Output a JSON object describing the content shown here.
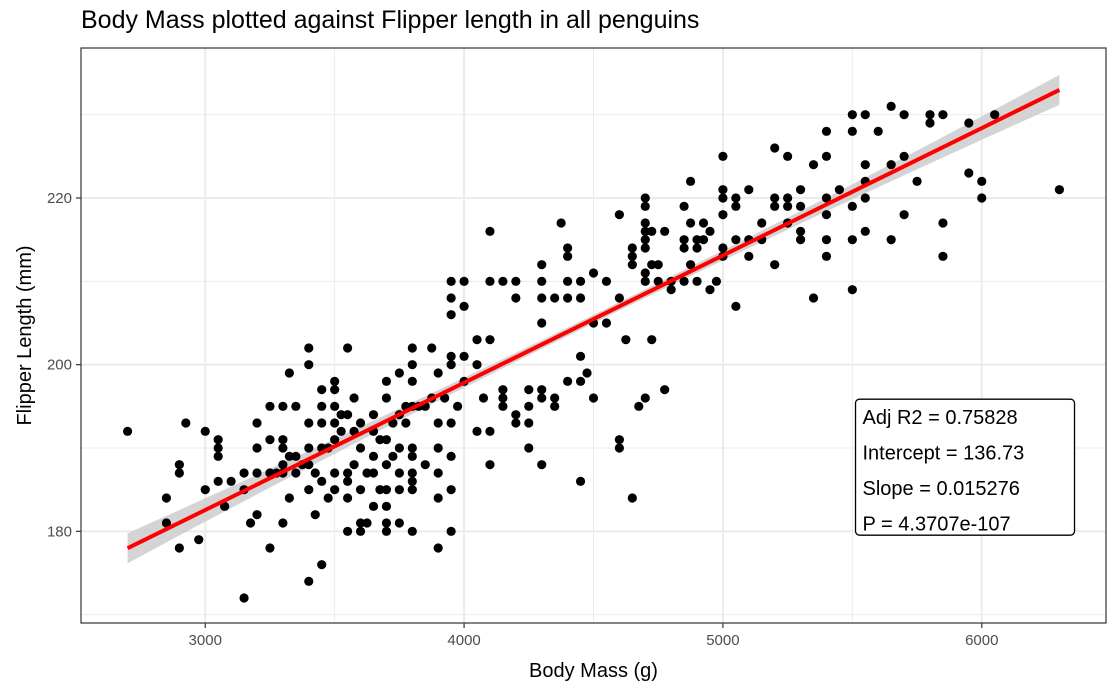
{
  "chart_data": {
    "type": "scatter",
    "title": "Body Mass plotted against Flipper length in all penguins",
    "xlabel": "Body Mass (g)",
    "ylabel": "Flipper Length (mm)",
    "xlim": [
      2520,
      6480
    ],
    "ylim": [
      169,
      238
    ],
    "x_ticks": [
      3000,
      4000,
      5000,
      6000
    ],
    "y_ticks": [
      180,
      200,
      220
    ],
    "grid": true,
    "colors": {
      "points": "#000000",
      "fit_line": "#ff0000",
      "confidence_band": "#cccccc",
      "grid": "#ebebeb"
    },
    "regression": {
      "intercept": 136.73,
      "slope": 0.015276,
      "x_range": [
        2700,
        6300
      ],
      "band_halfwidth_ends": 1.8,
      "band_halfwidth_center": 0.5
    },
    "stats_box": {
      "lines": [
        "Adj R2 =  0.75828",
        "Intercept = 136.73",
        "Slope = 0.015276",
        "P = 4.3707e-107"
      ],
      "x": 5520,
      "y": 195.5
    },
    "points": [
      [
        2700,
        192
      ],
      [
        2850,
        181
      ],
      [
        2850,
        184
      ],
      [
        2900,
        178
      ],
      [
        2900,
        187
      ],
      [
        2900,
        188
      ],
      [
        2925,
        193
      ],
      [
        2975,
        179
      ],
      [
        3000,
        185
      ],
      [
        3000,
        192
      ],
      [
        3050,
        186
      ],
      [
        3050,
        189
      ],
      [
        3050,
        190
      ],
      [
        3050,
        191
      ],
      [
        3075,
        183
      ],
      [
        3100,
        186
      ],
      [
        3150,
        172
      ],
      [
        3150,
        185
      ],
      [
        3150,
        187
      ],
      [
        3175,
        181
      ],
      [
        3200,
        182
      ],
      [
        3200,
        187
      ],
      [
        3200,
        190
      ],
      [
        3200,
        193
      ],
      [
        3250,
        178
      ],
      [
        3250,
        187
      ],
      [
        3250,
        191
      ],
      [
        3250,
        195
      ],
      [
        3275,
        187
      ],
      [
        3300,
        181
      ],
      [
        3300,
        187
      ],
      [
        3300,
        188
      ],
      [
        3300,
        190
      ],
      [
        3300,
        191
      ],
      [
        3300,
        195
      ],
      [
        3325,
        184
      ],
      [
        3325,
        189
      ],
      [
        3325,
        199
      ],
      [
        3350,
        187
      ],
      [
        3350,
        189
      ],
      [
        3350,
        195
      ],
      [
        3375,
        188
      ],
      [
        3400,
        174
      ],
      [
        3400,
        185
      ],
      [
        3400,
        188
      ],
      [
        3400,
        190
      ],
      [
        3400,
        193
      ],
      [
        3400,
        200
      ],
      [
        3400,
        202
      ],
      [
        3425,
        182
      ],
      [
        3425,
        187
      ],
      [
        3450,
        176
      ],
      [
        3450,
        186
      ],
      [
        3450,
        190
      ],
      [
        3450,
        193
      ],
      [
        3450,
        195
      ],
      [
        3450,
        197
      ],
      [
        3475,
        184
      ],
      [
        3475,
        190
      ],
      [
        3500,
        185
      ],
      [
        3500,
        187
      ],
      [
        3500,
        191
      ],
      [
        3500,
        193
      ],
      [
        3500,
        195
      ],
      [
        3500,
        197
      ],
      [
        3500,
        198
      ],
      [
        3525,
        192
      ],
      [
        3525,
        194
      ],
      [
        3550,
        180
      ],
      [
        3550,
        184
      ],
      [
        3550,
        186
      ],
      [
        3550,
        187
      ],
      [
        3550,
        194
      ],
      [
        3550,
        202
      ],
      [
        3575,
        188
      ],
      [
        3575,
        192
      ],
      [
        3575,
        196
      ],
      [
        3600,
        180
      ],
      [
        3600,
        181
      ],
      [
        3600,
        185
      ],
      [
        3600,
        190
      ],
      [
        3600,
        193
      ],
      [
        3625,
        181
      ],
      [
        3625,
        187
      ],
      [
        3650,
        183
      ],
      [
        3650,
        187
      ],
      [
        3650,
        189
      ],
      [
        3650,
        192
      ],
      [
        3650,
        194
      ],
      [
        3675,
        185
      ],
      [
        3675,
        191
      ],
      [
        3700,
        180
      ],
      [
        3700,
        181
      ],
      [
        3700,
        183
      ],
      [
        3700,
        185
      ],
      [
        3700,
        188
      ],
      [
        3700,
        191
      ],
      [
        3700,
        196
      ],
      [
        3700,
        198
      ],
      [
        3725,
        189
      ],
      [
        3725,
        193
      ],
      [
        3750,
        181
      ],
      [
        3750,
        185
      ],
      [
        3750,
        187
      ],
      [
        3750,
        190
      ],
      [
        3750,
        194
      ],
      [
        3750,
        199
      ],
      [
        3775,
        193
      ],
      [
        3775,
        195
      ],
      [
        3800,
        180
      ],
      [
        3800,
        185
      ],
      [
        3800,
        186
      ],
      [
        3800,
        187
      ],
      [
        3800,
        189
      ],
      [
        3800,
        190
      ],
      [
        3800,
        195
      ],
      [
        3800,
        198
      ],
      [
        3800,
        200
      ],
      [
        3800,
        202
      ],
      [
        3825,
        195
      ],
      [
        3850,
        188
      ],
      [
        3850,
        195
      ],
      [
        3875,
        196
      ],
      [
        3875,
        202
      ],
      [
        3900,
        178
      ],
      [
        3900,
        184
      ],
      [
        3900,
        187
      ],
      [
        3900,
        190
      ],
      [
        3900,
        193
      ],
      [
        3900,
        199
      ],
      [
        3925,
        196
      ],
      [
        3950,
        180
      ],
      [
        3950,
        185
      ],
      [
        3950,
        189
      ],
      [
        3950,
        193
      ],
      [
        3950,
        200
      ],
      [
        3950,
        201
      ],
      [
        3950,
        206
      ],
      [
        3950,
        208
      ],
      [
        3950,
        210
      ],
      [
        3975,
        195
      ],
      [
        4000,
        198
      ],
      [
        4000,
        201
      ],
      [
        4000,
        207
      ],
      [
        4000,
        210
      ],
      [
        4050,
        192
      ],
      [
        4050,
        200
      ],
      [
        4050,
        203
      ],
      [
        4075,
        196
      ],
      [
        4100,
        188
      ],
      [
        4100,
        192
      ],
      [
        4100,
        203
      ],
      [
        4100,
        210
      ],
      [
        4100,
        216
      ],
      [
        4150,
        195
      ],
      [
        4150,
        196
      ],
      [
        4150,
        197
      ],
      [
        4150,
        210
      ],
      [
        4200,
        193
      ],
      [
        4200,
        194
      ],
      [
        4200,
        208
      ],
      [
        4200,
        210
      ],
      [
        4250,
        190
      ],
      [
        4250,
        193
      ],
      [
        4250,
        195
      ],
      [
        4250,
        197
      ],
      [
        4300,
        188
      ],
      [
        4300,
        196
      ],
      [
        4300,
        197
      ],
      [
        4300,
        205
      ],
      [
        4300,
        208
      ],
      [
        4300,
        210
      ],
      [
        4300,
        212
      ],
      [
        4350,
        195
      ],
      [
        4350,
        196
      ],
      [
        4350,
        208
      ],
      [
        4375,
        217
      ],
      [
        4400,
        198
      ],
      [
        4400,
        208
      ],
      [
        4400,
        210
      ],
      [
        4400,
        213
      ],
      [
        4400,
        214
      ],
      [
        4450,
        186
      ],
      [
        4450,
        198
      ],
      [
        4450,
        201
      ],
      [
        4450,
        208
      ],
      [
        4450,
        210
      ],
      [
        4475,
        199
      ],
      [
        4500,
        196
      ],
      [
        4500,
        205
      ],
      [
        4500,
        211
      ],
      [
        4550,
        205
      ],
      [
        4550,
        210
      ],
      [
        4600,
        190
      ],
      [
        4600,
        191
      ],
      [
        4600,
        208
      ],
      [
        4600,
        218
      ],
      [
        4625,
        203
      ],
      [
        4650,
        184
      ],
      [
        4650,
        212
      ],
      [
        4650,
        213
      ],
      [
        4650,
        214
      ],
      [
        4675,
        195
      ],
      [
        4700,
        196
      ],
      [
        4700,
        210
      ],
      [
        4700,
        211
      ],
      [
        4700,
        214
      ],
      [
        4700,
        215
      ],
      [
        4700,
        216
      ],
      [
        4700,
        217
      ],
      [
        4700,
        219
      ],
      [
        4700,
        220
      ],
      [
        4725,
        203
      ],
      [
        4725,
        212
      ],
      [
        4725,
        216
      ],
      [
        4750,
        210
      ],
      [
        4750,
        212
      ],
      [
        4775,
        197
      ],
      [
        4775,
        216
      ],
      [
        4800,
        209
      ],
      [
        4800,
        210
      ],
      [
        4850,
        210
      ],
      [
        4850,
        214
      ],
      [
        4850,
        215
      ],
      [
        4850,
        219
      ],
      [
        4875,
        212
      ],
      [
        4875,
        217
      ],
      [
        4875,
        222
      ],
      [
        4900,
        210
      ],
      [
        4900,
        214
      ],
      [
        4900,
        215
      ],
      [
        4925,
        215
      ],
      [
        4925,
        217
      ],
      [
        4950,
        209
      ],
      [
        4950,
        216
      ],
      [
        4975,
        210
      ],
      [
        5000,
        213
      ],
      [
        5000,
        214
      ],
      [
        5000,
        218
      ],
      [
        5000,
        220
      ],
      [
        5000,
        221
      ],
      [
        5000,
        225
      ],
      [
        5050,
        207
      ],
      [
        5050,
        215
      ],
      [
        5050,
        219
      ],
      [
        5050,
        220
      ],
      [
        5100,
        213
      ],
      [
        5100,
        215
      ],
      [
        5100,
        221
      ],
      [
        5150,
        215
      ],
      [
        5150,
        217
      ],
      [
        5200,
        212
      ],
      [
        5200,
        219
      ],
      [
        5200,
        220
      ],
      [
        5200,
        226
      ],
      [
        5250,
        217
      ],
      [
        5250,
        219
      ],
      [
        5250,
        220
      ],
      [
        5250,
        225
      ],
      [
        5300,
        215
      ],
      [
        5300,
        216
      ],
      [
        5300,
        219
      ],
      [
        5300,
        221
      ],
      [
        5350,
        208
      ],
      [
        5350,
        224
      ],
      [
        5400,
        213
      ],
      [
        5400,
        215
      ],
      [
        5400,
        218
      ],
      [
        5400,
        220
      ],
      [
        5400,
        225
      ],
      [
        5400,
        228
      ],
      [
        5450,
        221
      ],
      [
        5500,
        209
      ],
      [
        5500,
        215
      ],
      [
        5500,
        219
      ],
      [
        5500,
        228
      ],
      [
        5500,
        230
      ],
      [
        5550,
        216
      ],
      [
        5550,
        220
      ],
      [
        5550,
        222
      ],
      [
        5550,
        224
      ],
      [
        5550,
        230
      ],
      [
        5600,
        228
      ],
      [
        5650,
        215
      ],
      [
        5650,
        224
      ],
      [
        5650,
        231
      ],
      [
        5700,
        218
      ],
      [
        5700,
        225
      ],
      [
        5700,
        230
      ],
      [
        5750,
        222
      ],
      [
        5800,
        229
      ],
      [
        5800,
        230
      ],
      [
        5850,
        213
      ],
      [
        5850,
        217
      ],
      [
        5850,
        230
      ],
      [
        5950,
        223
      ],
      [
        5950,
        229
      ],
      [
        6000,
        220
      ],
      [
        6000,
        222
      ],
      [
        6050,
        230
      ],
      [
        6300,
        221
      ]
    ]
  }
}
